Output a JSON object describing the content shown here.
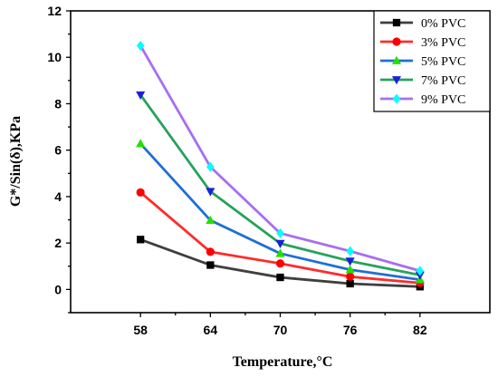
{
  "chart_data": {
    "type": "line",
    "title": "",
    "xlabel": "Temperature,°C",
    "ylabel": "G*/Sin(δ),KPa",
    "categories": [
      "58",
      "64",
      "70",
      "76",
      "82"
    ],
    "x": [
      58,
      64,
      70,
      76,
      82
    ],
    "xlim": [
      52,
      88
    ],
    "ylim": [
      -1,
      12
    ],
    "yticks": [
      0,
      2,
      4,
      6,
      8,
      10,
      12
    ],
    "ytick_labels": [
      "0",
      "2",
      "4",
      "6",
      "8",
      "10",
      "12"
    ],
    "grid": false,
    "legend_position": "top-right",
    "series": [
      {
        "name": "0% PVC",
        "color": "#3f3f3f",
        "marker": "square",
        "marker_color": "#000000",
        "values": [
          2.15,
          1.05,
          0.52,
          0.25,
          0.12
        ]
      },
      {
        "name": "3% PVC",
        "color": "#ff2b2b",
        "marker": "circle",
        "marker_color": "#ff0000",
        "values": [
          4.18,
          1.62,
          1.12,
          0.55,
          0.28
        ]
      },
      {
        "name": "5% PVC",
        "color": "#1f6fd6",
        "marker": "triangle-up",
        "marker_color": "#22e000",
        "values": [
          6.28,
          2.98,
          1.55,
          0.85,
          0.42
        ]
      },
      {
        "name": "7% PVC",
        "color": "#27a25a",
        "marker": "triangle-down",
        "marker_color": "#1a22d6",
        "values": [
          8.38,
          4.22,
          1.98,
          1.22,
          0.62
        ]
      },
      {
        "name": "9% PVC",
        "color": "#a86ef0",
        "marker": "diamond",
        "marker_color": "#00ffff",
        "values": [
          10.5,
          5.28,
          2.42,
          1.65,
          0.8
        ]
      }
    ]
  }
}
